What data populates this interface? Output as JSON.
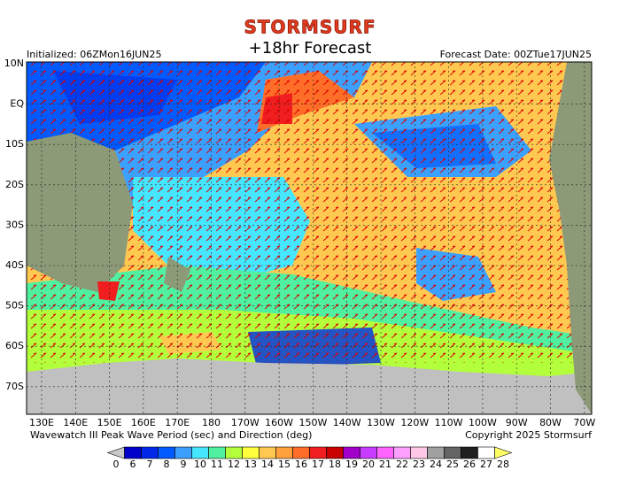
{
  "header": {
    "brand": "STORMSURF",
    "title": "+18hr Forecast",
    "initialized": "Initialized: 06ZMon16JUN25",
    "forecast_date": "Forecast Date: 00ZTue17JUN25"
  },
  "map": {
    "lat_labels": [
      "10N",
      "EQ",
      "10S",
      "20S",
      "30S",
      "40S",
      "50S",
      "60S",
      "70S"
    ],
    "lon_labels": [
      "130E",
      "140E",
      "150E",
      "160E",
      "170E",
      "180",
      "170W",
      "160W",
      "150W",
      "140W",
      "130W",
      "120W",
      "110W",
      "100W",
      "90W",
      "80W",
      "70W"
    ]
  },
  "footer": {
    "caption": "Wavewatch III Peak Wave Period (sec) and Direction (deg)",
    "copyright": "Copyright 2025 Stormsurf"
  },
  "colorbar": {
    "values": [
      0,
      6,
      7,
      8,
      9,
      10,
      11,
      12,
      13,
      14,
      15,
      16,
      17,
      18,
      19,
      20,
      21,
      22,
      23,
      24,
      25,
      26,
      27,
      28
    ],
    "colors": [
      "#c8c8c8",
      "#0000c8",
      "#0028e6",
      "#005aff",
      "#3ca0ff",
      "#46e6ff",
      "#50f0a0",
      "#b4ff3c",
      "#ffff3c",
      "#ffc850",
      "#ffa03c",
      "#ff6e28",
      "#f01e1e",
      "#c80000",
      "#a000c8",
      "#c83cff",
      "#ff64ff",
      "#ffa0ff",
      "#ffc8e6",
      "#a0a0a0",
      "#646464",
      "#202020",
      "#ffffff",
      "#ffff64"
    ]
  }
}
